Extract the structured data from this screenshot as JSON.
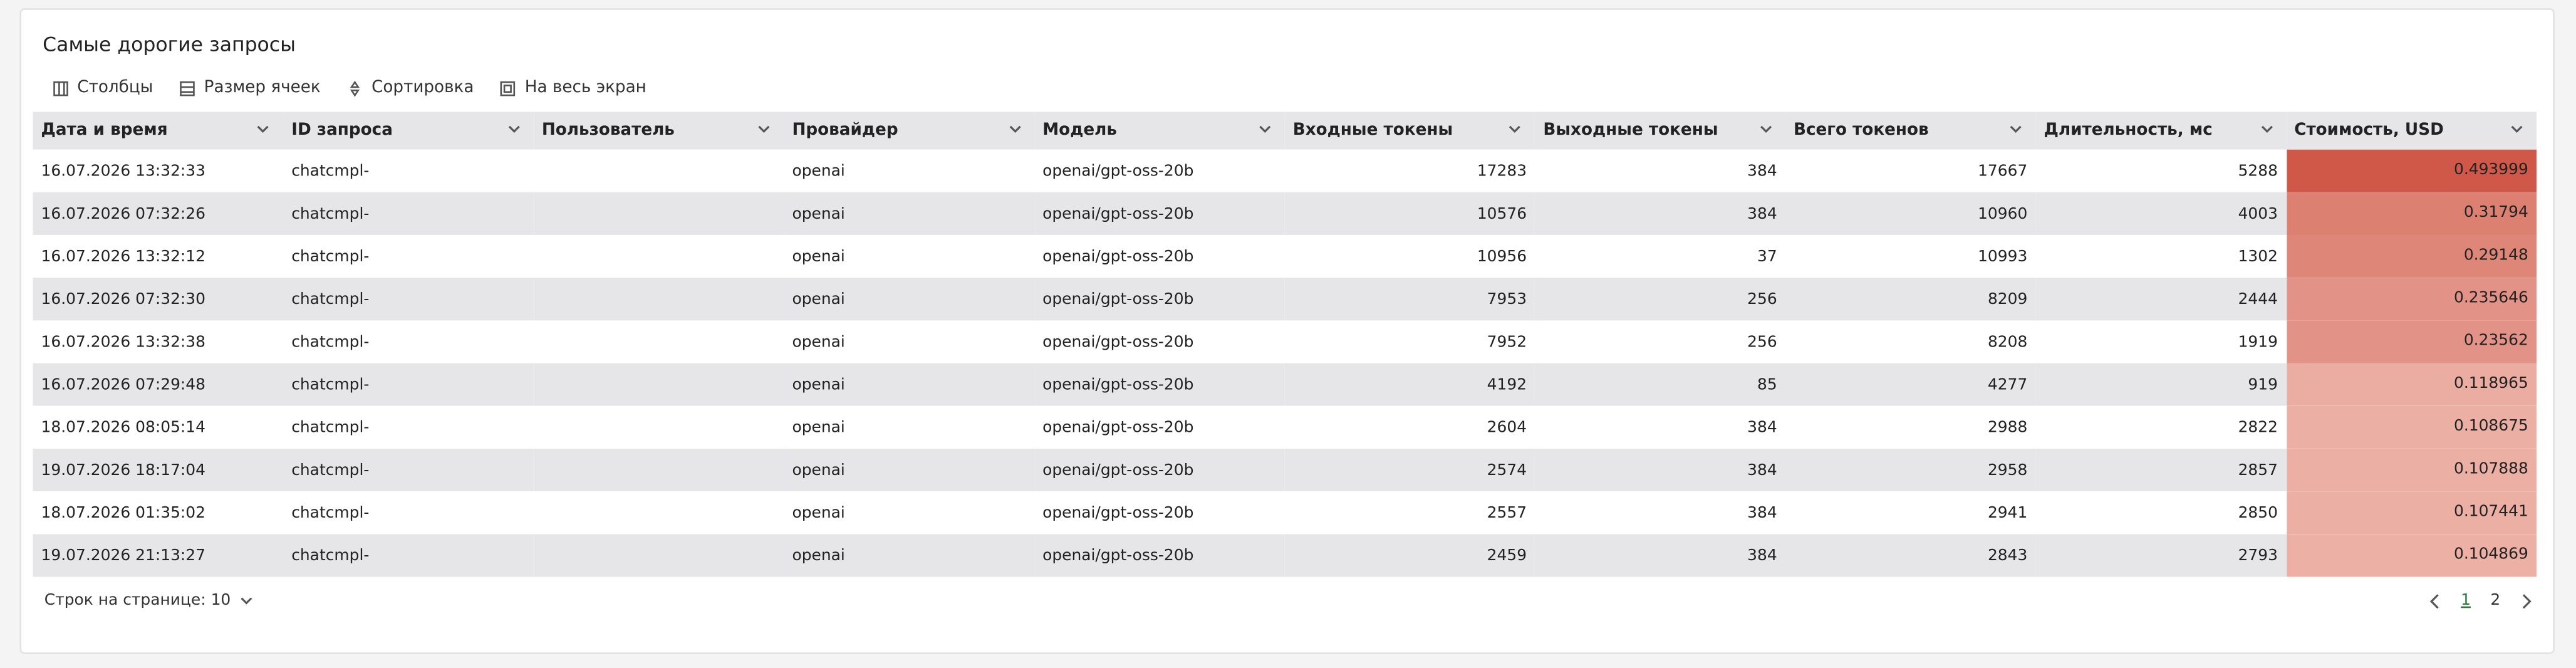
{
  "title": "Самые дорогие запросы",
  "toolbar": [
    "Столбцы",
    "Размер ячеек",
    "Сортировка",
    "На весь экран"
  ],
  "table": {
    "columns": [
      "Дата и время",
      "ID запроса",
      "Пользователь",
      "Провайдер",
      "Модель",
      "Входные токены",
      "Выходные токены",
      "Всего токенов",
      "Длительность, мс",
      "Стоимость, USD"
    ],
    "rows": [
      [
        "16.07.2026 13:32:33",
        "chatcmpl-",
        "",
        "openai",
        "openai/gpt-oss-20b",
        17283,
        384,
        17667,
        5288,
        0.493999
      ],
      [
        "16.07.2026 07:32:26",
        "chatcmpl-",
        "",
        "openai",
        "openai/gpt-oss-20b",
        10576,
        384,
        10960,
        4003,
        0.31794
      ],
      [
        "16.07.2026 13:32:12",
        "chatcmpl-",
        "",
        "openai",
        "openai/gpt-oss-20b",
        10956,
        37,
        10993,
        1302,
        0.29148
      ],
      [
        "16.07.2026 07:32:30",
        "chatcmpl-",
        "",
        "openai",
        "openai/gpt-oss-20b",
        7953,
        256,
        8209,
        2444,
        0.235646
      ],
      [
        "16.07.2026 13:32:38",
        "chatcmpl-",
        "",
        "openai",
        "openai/gpt-oss-20b",
        7952,
        256,
        8208,
        1919,
        0.23562
      ],
      [
        "16.07.2026 07:29:48",
        "chatcmpl-",
        "",
        "openai",
        "openai/gpt-oss-20b",
        4192,
        85,
        4277,
        919,
        0.118965
      ],
      [
        "18.07.2026 08:05:14",
        "chatcmpl-",
        "",
        "openai",
        "openai/gpt-oss-20b",
        2604,
        384,
        2988,
        2822,
        0.108675
      ],
      [
        "19.07.2026 18:17:04",
        "chatcmpl-",
        "",
        "openai",
        "openai/gpt-oss-20b",
        2574,
        384,
        2958,
        2857,
        0.107888
      ],
      [
        "18.07.2026 01:35:02",
        "chatcmpl-",
        "",
        "openai",
        "openai/gpt-oss-20b",
        2557,
        384,
        2941,
        2850,
        0.107441
      ],
      [
        "19.07.2026 21:13:27",
        "chatcmpl-",
        "",
        "openai",
        "openai/gpt-oss-20b",
        2459,
        384,
        2843,
        2793,
        0.104869
      ]
    ]
  },
  "footer": {
    "rows_per_page": "Строк на странице: 10",
    "pages": [
      "1",
      "2"
    ]
  }
}
